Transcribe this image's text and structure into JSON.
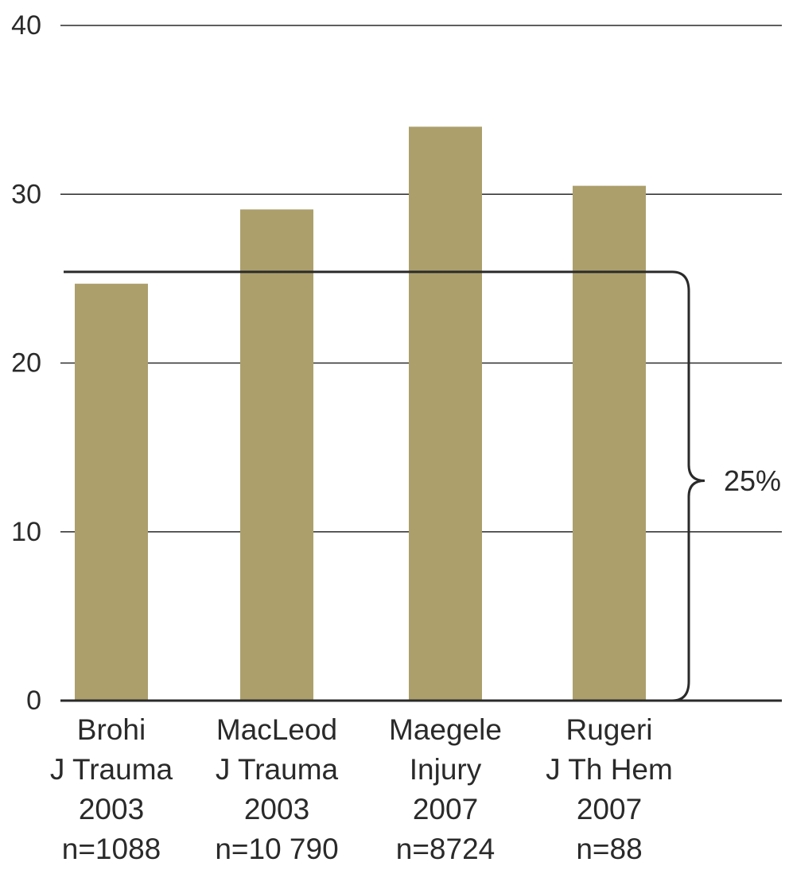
{
  "chart_data": {
    "type": "bar",
    "categories": [
      [
        "Brohi",
        "J Trauma",
        "2003",
        "n=1088"
      ],
      [
        "MacLeod",
        "J Trauma",
        "2003",
        "n=10 790"
      ],
      [
        "Maegele",
        "Injury",
        "2007",
        "n=8724"
      ],
      [
        "Rugeri",
        "J  Th Hem",
        "2007",
        "n=88"
      ]
    ],
    "values": [
      24.7,
      29.1,
      34.0,
      30.5
    ],
    "ylim": [
      0,
      40
    ],
    "yticks": [
      0,
      10,
      20,
      30,
      40
    ],
    "grid": true,
    "reference_line": 25.4,
    "annotation": "25%",
    "title": "",
    "xlabel": "",
    "ylabel": "",
    "colors": {
      "bar": "#ac9f6c",
      "grid": "#2a2a2a",
      "text": "#2a2a2a"
    }
  }
}
